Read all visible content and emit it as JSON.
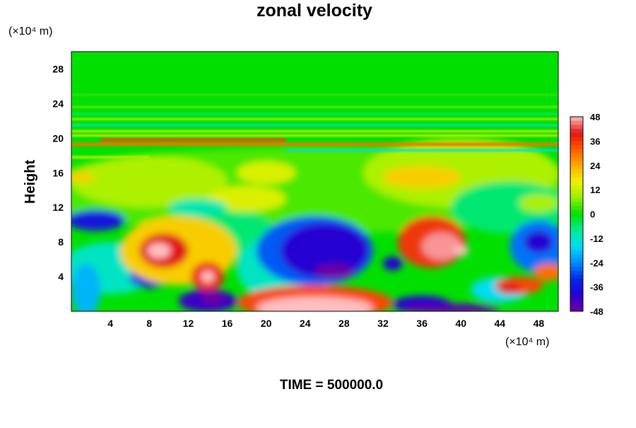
{
  "chart_data": {
    "type": "heatmap",
    "title": "zonal velocity",
    "ylabel": "Height",
    "yunit": "(×10⁴ m)",
    "xunit": "(×10⁴ m)",
    "xticks": [
      "4",
      "8",
      "12",
      "16",
      "20",
      "24",
      "28",
      "32",
      "36",
      "40",
      "44",
      "48"
    ],
    "yticks": [
      "4",
      "8",
      "12",
      "16",
      "20",
      "24",
      "28"
    ],
    "xlim": [
      0,
      50
    ],
    "ylim": [
      0,
      30
    ],
    "colorbar": {
      "ticks": [
        "48",
        "36",
        "24",
        "12",
        "0",
        "-12",
        "-24",
        "-36",
        "-48"
      ],
      "range": [
        -48,
        48
      ],
      "palette": "purple-blue-cyan-green-yellow-orange-red-pink"
    },
    "footer": "TIME = 500000.0",
    "field_features": [
      {
        "x": 25,
        "y": 0.5,
        "value": 48,
        "kind": "max"
      },
      {
        "x": 9,
        "y": 7,
        "value": 44,
        "kind": "max"
      },
      {
        "x": 14,
        "y": 4,
        "value": 40,
        "kind": "max"
      },
      {
        "x": 38,
        "y": 7.5,
        "value": 46,
        "kind": "max"
      },
      {
        "x": 45,
        "y": 3.5,
        "value": 34,
        "kind": "max"
      },
      {
        "x": 49,
        "y": 4.5,
        "value": 34,
        "kind": "max"
      },
      {
        "x": 26,
        "y": 8,
        "value": -44,
        "kind": "min"
      },
      {
        "x": 26,
        "y": 5,
        "value": -48,
        "kind": "min"
      },
      {
        "x": 48,
        "y": 8,
        "value": -40,
        "kind": "min"
      },
      {
        "x": 2,
        "y": 10.5,
        "value": -36,
        "kind": "min"
      },
      {
        "x": 8,
        "y": 4,
        "value": -34,
        "kind": "min"
      },
      {
        "x": 14,
        "y": 1.5,
        "value": -46,
        "kind": "min"
      },
      {
        "x": 36,
        "y": 1,
        "value": -44,
        "kind": "min"
      },
      {
        "x": 33,
        "y": 5.5,
        "value": -40,
        "kind": "min"
      }
    ]
  }
}
